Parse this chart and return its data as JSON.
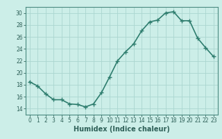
{
  "x": [
    0,
    1,
    2,
    3,
    4,
    5,
    6,
    7,
    8,
    9,
    10,
    11,
    12,
    13,
    14,
    15,
    16,
    17,
    18,
    19,
    20,
    21,
    22,
    23
  ],
  "y": [
    18.5,
    17.8,
    16.5,
    15.5,
    15.5,
    14.8,
    14.7,
    14.3,
    14.8,
    16.7,
    19.3,
    22.0,
    23.5,
    24.8,
    27.0,
    28.5,
    28.8,
    30.0,
    30.2,
    28.7,
    28.7,
    25.8,
    24.2,
    22.7
  ],
  "line_color": "#2e7d6e",
  "marker": "+",
  "marker_size": 4,
  "linewidth": 1.2,
  "xlabel": "Humidex (Indice chaleur)",
  "ylim": [
    13,
    31
  ],
  "xlim": [
    -0.5,
    23.5
  ],
  "yticks": [
    14,
    16,
    18,
    20,
    22,
    24,
    26,
    28,
    30
  ],
  "xticks": [
    0,
    1,
    2,
    3,
    4,
    5,
    6,
    7,
    8,
    9,
    10,
    11,
    12,
    13,
    14,
    15,
    16,
    17,
    18,
    19,
    20,
    21,
    22,
    23
  ],
  "xtick_labels": [
    "0",
    "1",
    "2",
    "3",
    "4",
    "5",
    "6",
    "7",
    "8",
    "9",
    "10",
    "11",
    "12",
    "13",
    "14",
    "15",
    "16",
    "17",
    "18",
    "19",
    "20",
    "21",
    "22",
    "23"
  ],
  "bg_color": "#cceee8",
  "grid_color": "#aad6d0",
  "axes_color": "#4a8a80",
  "tick_color": "#2e6058",
  "label_fontsize": 6.5,
  "tick_fontsize": 5.5,
  "xlabel_fontsize": 7.0
}
